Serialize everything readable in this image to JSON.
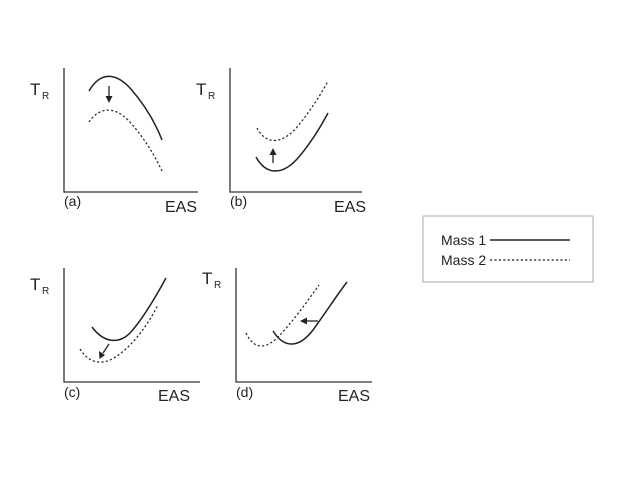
{
  "panels": [
    {
      "id": "a",
      "y_label": "T",
      "y_sub": "R",
      "x_label": "EAS",
      "tag": "(a)"
    },
    {
      "id": "b",
      "y_label": "T",
      "y_sub": "R",
      "x_label": "EAS",
      "tag": "(b)"
    },
    {
      "id": "c",
      "y_label": "T",
      "y_sub": "R",
      "x_label": "EAS",
      "tag": "(c)"
    },
    {
      "id": "d",
      "y_label": "T",
      "y_sub": "R",
      "x_label": "EAS",
      "tag": "(d)"
    }
  ],
  "legend": {
    "items": [
      {
        "label": "Mass 1",
        "style": "solid"
      },
      {
        "label": "Mass 2",
        "style": "dashed"
      }
    ]
  },
  "colors": {
    "ink": "#222222",
    "legend_border": "#aaaaaa",
    "background": "#ffffff"
  }
}
